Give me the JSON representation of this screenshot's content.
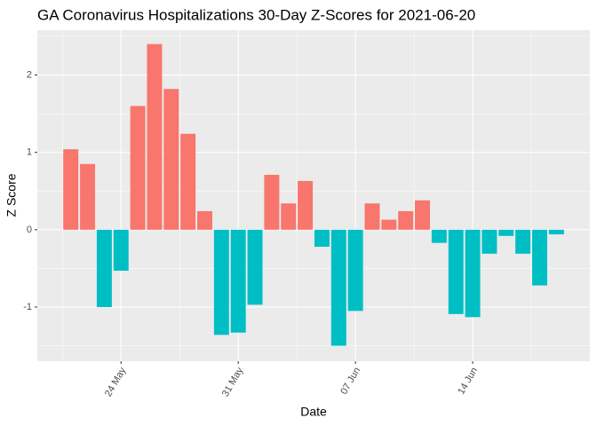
{
  "chart_data": {
    "type": "bar",
    "title": "GA Coronavirus Hospitalizations 30-Day Z-Scores for 2021-06-20",
    "xlabel": "Date",
    "ylabel": "Z Score",
    "x": [
      "2021-05-21",
      "2021-05-22",
      "2021-05-23",
      "2021-05-24",
      "2021-05-25",
      "2021-05-26",
      "2021-05-27",
      "2021-05-28",
      "2021-05-29",
      "2021-05-30",
      "2021-05-31",
      "2021-06-01",
      "2021-06-02",
      "2021-06-03",
      "2021-06-04",
      "2021-06-05",
      "2021-06-06",
      "2021-06-07",
      "2021-06-08",
      "2021-06-09",
      "2021-06-10",
      "2021-06-11",
      "2021-06-12",
      "2021-06-13",
      "2021-06-14",
      "2021-06-15",
      "2021-06-16",
      "2021-06-17",
      "2021-06-18",
      "2021-06-19"
    ],
    "values": [
      1.04,
      0.85,
      -1.0,
      -0.53,
      1.6,
      2.4,
      1.82,
      1.24,
      0.24,
      -1.36,
      -1.33,
      -0.97,
      0.71,
      0.34,
      0.63,
      -0.22,
      -1.5,
      -1.05,
      0.34,
      0.13,
      0.24,
      0.38,
      -0.17,
      -1.09,
      -1.13,
      -0.31,
      -0.08,
      -0.31,
      -0.72,
      -0.06
    ],
    "positive_color": "#F8766D",
    "negative_color": "#00BFC4",
    "xlim": [
      "2021-05-19",
      "2021-06-21"
    ],
    "xticks": [
      {
        "value": "2021-05-24",
        "label": "24 May"
      },
      {
        "value": "2021-05-31",
        "label": "31 May"
      },
      {
        "value": "2021-06-07",
        "label": "07 Jun"
      },
      {
        "value": "2021-06-14",
        "label": "14 Jun"
      }
    ],
    "ylim": [
      -1.7,
      2.58
    ],
    "yticks": [
      -1,
      0,
      1,
      2
    ],
    "grid": true
  }
}
